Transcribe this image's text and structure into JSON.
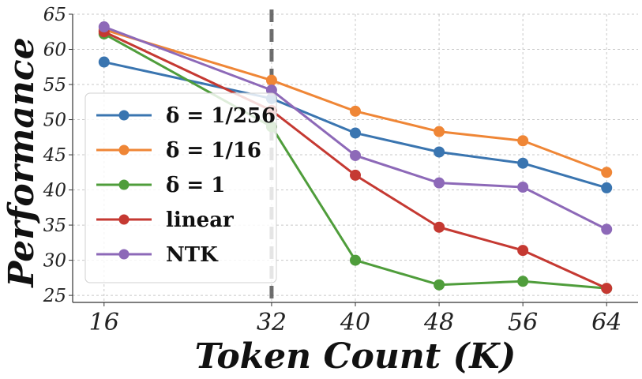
{
  "chart_data": {
    "type": "line",
    "xlabel": "Token Count (K)",
    "ylabel": "Performance",
    "x": [
      16,
      32,
      40,
      48,
      56,
      64
    ],
    "x_tick_labels": [
      "16",
      "32",
      "40",
      "48",
      "56",
      "64"
    ],
    "xlim": [
      13,
      67
    ],
    "ylim": [
      24,
      65
    ],
    "y_ticks": [
      25,
      30,
      35,
      40,
      45,
      50,
      55,
      60,
      65
    ],
    "grid": true,
    "legend_position": "lower-left",
    "vertical_marker_x": 32,
    "series": [
      {
        "name": "δ = 1/256",
        "color": "#3a75b0",
        "values": [
          58.2,
          53.0,
          48.1,
          45.4,
          43.8,
          40.3
        ]
      },
      {
        "name": "δ = 1/16",
        "color": "#ef8636",
        "values": [
          62.8,
          55.6,
          51.2,
          48.3,
          47.0,
          42.5
        ]
      },
      {
        "name": "δ = 1",
        "color": "#4f9d3b",
        "values": [
          62.2,
          49.0,
          30.0,
          26.5,
          27.0,
          26.0
        ]
      },
      {
        "name": "linear",
        "color": "#c53932",
        "values": [
          62.5,
          51.3,
          42.1,
          34.7,
          31.4,
          26.0
        ]
      },
      {
        "name": "NTK",
        "color": "#8d69b8",
        "values": [
          63.2,
          54.2,
          44.9,
          41.0,
          40.4,
          34.4
        ]
      }
    ]
  }
}
